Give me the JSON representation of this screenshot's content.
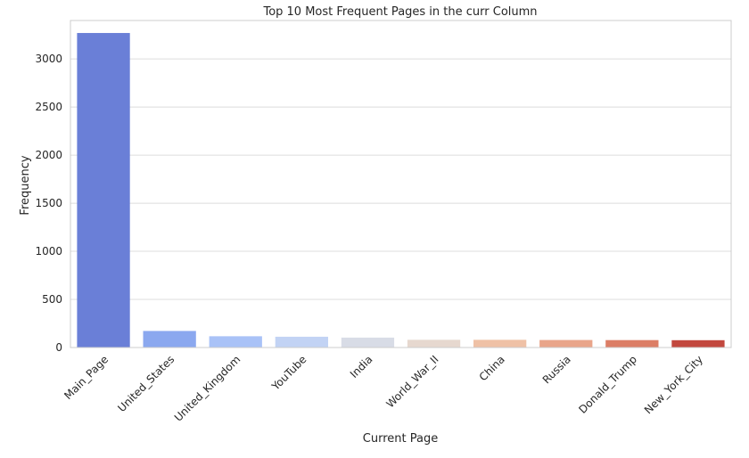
{
  "chart_data": {
    "type": "bar",
    "title": "Top 10 Most Frequent Pages in the curr Column",
    "xlabel": "Current Page",
    "ylabel": "Frequency",
    "categories": [
      "Main_Page",
      "United_States",
      "United_Kingdom",
      "YouTube",
      "India",
      "World_War_II",
      "China",
      "Russia",
      "Donald_Trump",
      "New_York_City"
    ],
    "values": [
      3270,
      172,
      117,
      112,
      103,
      80,
      80,
      78,
      77,
      76
    ],
    "colors": [
      "#6a7fd7",
      "#8ba8ef",
      "#a9c2f7",
      "#c2d3f4",
      "#d8dce6",
      "#e6d8cf",
      "#efc1a6",
      "#e9a58a",
      "#dc7e66",
      "#c2483e"
    ],
    "ylim": [
      0,
      3400
    ],
    "yticks": [
      0,
      500,
      1000,
      1500,
      2000,
      2500,
      3000
    ],
    "grid": true
  }
}
